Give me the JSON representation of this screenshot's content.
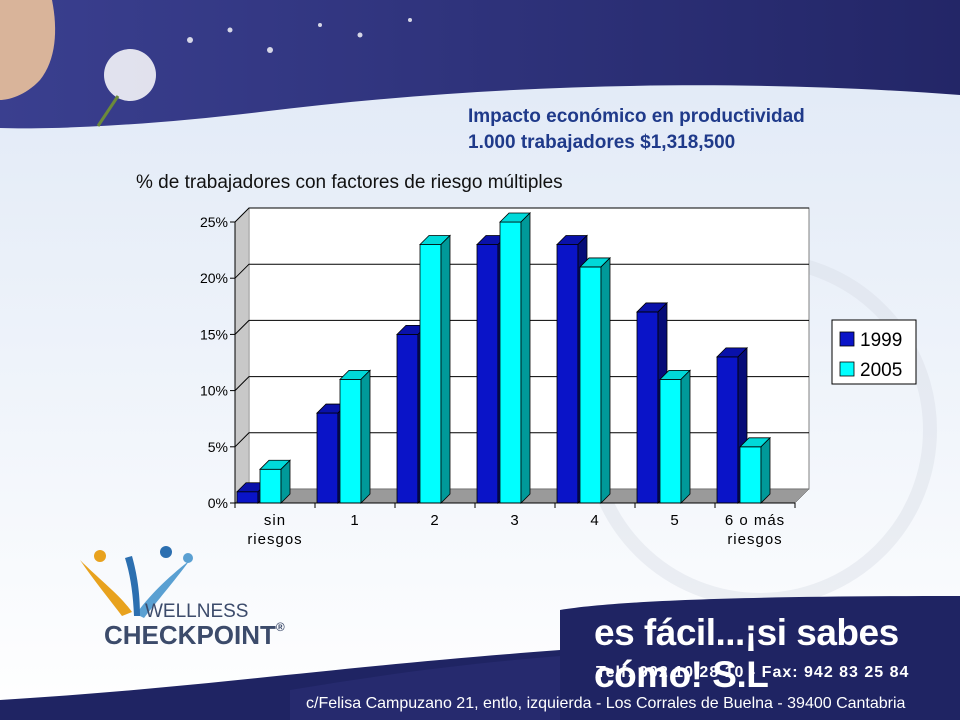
{
  "header": {
    "title_line1": "Impacto económico en productividad",
    "title_line2": "1.000 trabajadores $1,318,500"
  },
  "chart_data": {
    "type": "bar",
    "title": "% de trabajadores con factores de riesgo múltiples",
    "categories": [
      "sin riesgos",
      "1",
      "2",
      "3",
      "4",
      "5",
      "6 o más riesgos"
    ],
    "category_lines": [
      [
        "sin",
        "riesgos"
      ],
      [
        "1"
      ],
      [
        "2"
      ],
      [
        "3"
      ],
      [
        "4"
      ],
      [
        "5"
      ],
      [
        "6 o más",
        "riesgos"
      ]
    ],
    "series": [
      {
        "name": "1999",
        "values": [
          1,
          8,
          15,
          23,
          23,
          17,
          13
        ],
        "color": "#0a14c8"
      },
      {
        "name": "2005",
        "values": [
          3,
          11,
          23,
          25,
          21,
          11,
          5
        ],
        "color": "#00ffff"
      }
    ],
    "ylim": [
      0,
      25
    ],
    "yticks": [
      "0%",
      "5%",
      "10%",
      "15%",
      "20%",
      "25%"
    ],
    "ytick_values": [
      0,
      5,
      10,
      15,
      20,
      25
    ],
    "grid": true,
    "legend": "right"
  },
  "footer": {
    "brand_line1": "WELLNESS",
    "brand_line2a": "CHECK",
    "brand_line2b": "POINT",
    "brand_mark": "®",
    "slogan": "es fácil...¡si sabes cómo! S.L",
    "phone": "Telf: 902 10 28 10 - Fax: 942 83 25 84",
    "address": "c/Felisa Campuzano 21, entlo, izquierda - Los Corrales de Buelna - 39400 Cantabria"
  },
  "colors": {
    "band": "#2b2e78",
    "title": "#1f3a8a",
    "bar1999": "#0a14c8",
    "bar2005": "#00ffff"
  }
}
